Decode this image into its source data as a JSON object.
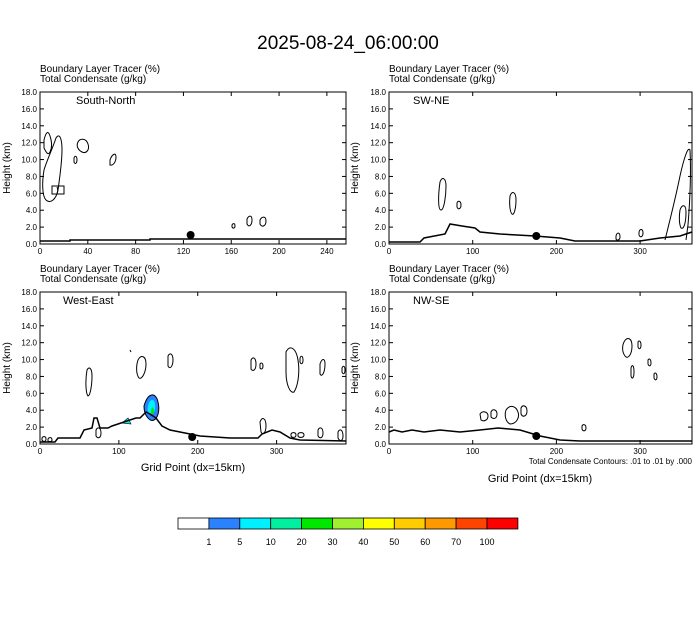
{
  "title": "2025-08-24_06:00:00",
  "panel_header": {
    "line1": "Boundary Layer Tracer   (%)",
    "line2": "Total Condensate   (g/kg)"
  },
  "y_axis_label": "Height (km)",
  "x_axis_label": "Grid Point (dx=15km)",
  "contour_note": "Total Condensate Contours: .01 to .01 by .000",
  "y_ticks": [
    "0.0",
    "2.0",
    "4.0",
    "6.0",
    "8.0",
    "10.0",
    "12.0",
    "14.0",
    "16.0",
    "18.0"
  ],
  "colorbar": {
    "labels": [
      "1",
      "5",
      "10",
      "20",
      "30",
      "40",
      "50",
      "60",
      "70",
      "100"
    ],
    "colors": [
      "#ffffff",
      "#2a82ff",
      "#00f0ff",
      "#00f0a0",
      "#00e800",
      "#a0f030",
      "#ffff00",
      "#ffcc00",
      "#ff9900",
      "#ff4400",
      "#ff0000"
    ]
  },
  "chart_data": [
    {
      "type": "contour-cross-section",
      "panel_label": "South-North",
      "x_ticks": [
        "0",
        "40",
        "80",
        "120",
        "160",
        "200",
        "240"
      ],
      "xlim": [
        0,
        256
      ],
      "ylim": [
        0,
        18
      ],
      "marker_x": 126
    },
    {
      "type": "contour-cross-section",
      "panel_label": "SW-NE",
      "x_ticks": [
        "0",
        "100",
        "200",
        "300"
      ],
      "xlim": [
        0,
        362
      ],
      "ylim": [
        0,
        18
      ],
      "marker_x": 176
    },
    {
      "type": "contour-cross-section",
      "panel_label": "West-East",
      "x_ticks": [
        "0",
        "100",
        "200",
        "300"
      ],
      "xlim": [
        0,
        388
      ],
      "ylim": [
        0,
        18
      ],
      "marker_x": 193
    },
    {
      "type": "contour-cross-section",
      "panel_label": "NW-SE",
      "x_ticks": [
        "0",
        "100",
        "200",
        "300"
      ],
      "xlim": [
        0,
        362
      ],
      "ylim": [
        0,
        18
      ],
      "marker_x": 176
    }
  ]
}
